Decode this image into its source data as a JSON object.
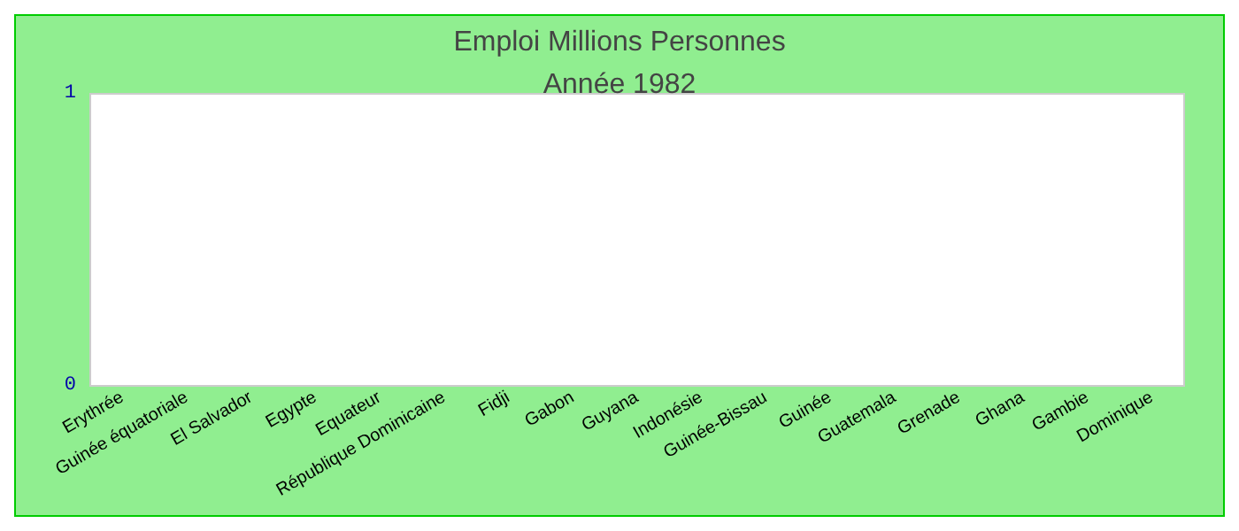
{
  "chart_data": {
    "type": "bar",
    "title": "Emploi Millions Personnes",
    "subtitle": "Année 1982",
    "categories": [
      "Erythrée",
      "Guinée équatoriale",
      "El Salvador",
      "Egypte",
      "Equateur",
      "République Dominicaine",
      "Fidji",
      "Gabon",
      "Guyana",
      "Indonésie",
      "Guinée-Bissau",
      "Guinée",
      "Guatemala",
      "Grenade",
      "Ghana",
      "Gambie",
      "Dominique"
    ],
    "values": [
      null,
      null,
      null,
      null,
      null,
      null,
      null,
      null,
      null,
      null,
      null,
      null,
      null,
      null,
      null,
      null,
      null
    ],
    "ylim": [
      0,
      1
    ],
    "yticks": [
      0,
      1
    ],
    "grid": false
  }
}
